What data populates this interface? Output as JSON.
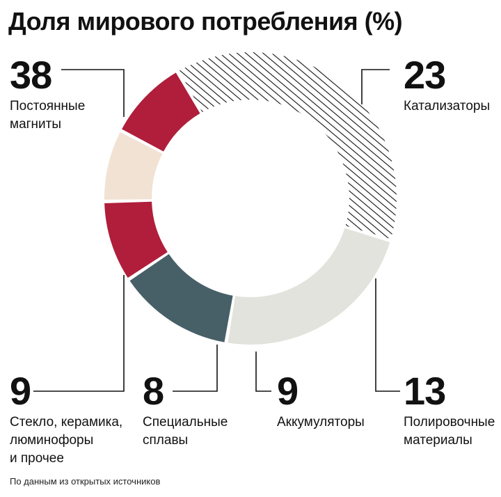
{
  "title": "Доля мирового потребления (%)",
  "source": "По данным из открытых источников",
  "colors": {
    "magnets": "#ffffff",
    "catalysts": "#e2e3dc",
    "polishing": "#476068",
    "batteries": "#b01e3b",
    "alloys": "#f1e2d3",
    "glass": "#b01e3b",
    "hatch": "#111111",
    "leader": "#111111"
  },
  "chart_data": {
    "type": "pie",
    "title": "Доля мирового потребления (%)",
    "unit": "%",
    "categories": [
      "Постоянные магниты",
      "Катализаторы",
      "Полировочные материалы",
      "Аккумуляторы",
      "Специальные сплавы",
      "Стекло, керамика, люминофоры и прочее"
    ],
    "values": [
      38,
      23,
      13,
      9,
      8,
      9
    ],
    "patterns": [
      "hatched",
      "solid",
      "solid",
      "solid",
      "solid",
      "solid"
    ],
    "label_lines": [
      [
        "Постоянные",
        "магниты"
      ],
      [
        "Катализаторы"
      ],
      [
        "Полировочные",
        "материалы"
      ],
      [
        "Аккумуляторы"
      ],
      [
        "Специальные",
        "сплавы"
      ],
      [
        "Стекло, керамика,",
        "люминофоры",
        "и прочее"
      ]
    ]
  }
}
